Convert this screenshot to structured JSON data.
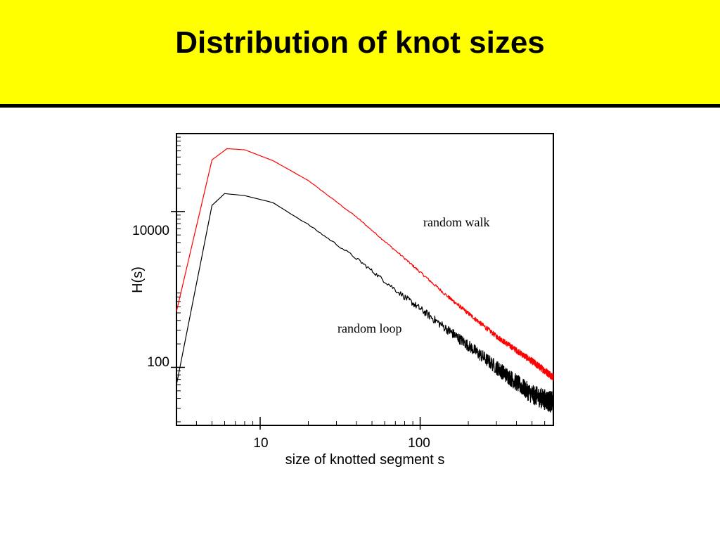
{
  "slide": {
    "title": "Distribution of knot sizes",
    "colors": {
      "band": "#ffff00",
      "rule": "#000000"
    }
  },
  "chart_data": {
    "type": "line",
    "title": "",
    "xlabel": "size of knotted segment s",
    "ylabel": "H(s)",
    "xscale": "log",
    "yscale": "log",
    "xlim": [
      3,
      680
    ],
    "ylim": [
      18,
      100000
    ],
    "grid": false,
    "legend": "none",
    "x_ticks": [
      {
        "value": 10,
        "label": "10"
      },
      {
        "value": 100,
        "label": "100"
      }
    ],
    "y_ticks": [
      {
        "value": 100,
        "label": "100"
      },
      {
        "value": 10000,
        "label": "10000"
      }
    ],
    "annotations": [
      {
        "text": "random walk",
        "series": "random walk"
      },
      {
        "text": "random loop",
        "series": "random loop"
      }
    ],
    "series": [
      {
        "name": "random walk",
        "color": "#ff0000",
        "noise": 0.1,
        "points": [
          [
            3,
            520
          ],
          [
            5,
            46000
          ],
          [
            6.2,
            64000
          ],
          [
            8,
            62000
          ],
          [
            12,
            45000
          ],
          [
            20,
            25000
          ],
          [
            40,
            8500
          ],
          [
            80,
            2500
          ],
          [
            150,
            800
          ],
          [
            300,
            250
          ],
          [
            500,
            120
          ],
          [
            680,
            75
          ]
        ]
      },
      {
        "name": "random loop",
        "color": "#000000",
        "noise": 0.28,
        "points": [
          [
            3,
            60
          ],
          [
            5,
            12000
          ],
          [
            6,
            17000
          ],
          [
            8,
            16000
          ],
          [
            12,
            13000
          ],
          [
            20,
            6800
          ],
          [
            40,
            2500
          ],
          [
            80,
            800
          ],
          [
            150,
            300
          ],
          [
            300,
            100
          ],
          [
            500,
            45
          ],
          [
            680,
            35
          ]
        ]
      }
    ]
  }
}
